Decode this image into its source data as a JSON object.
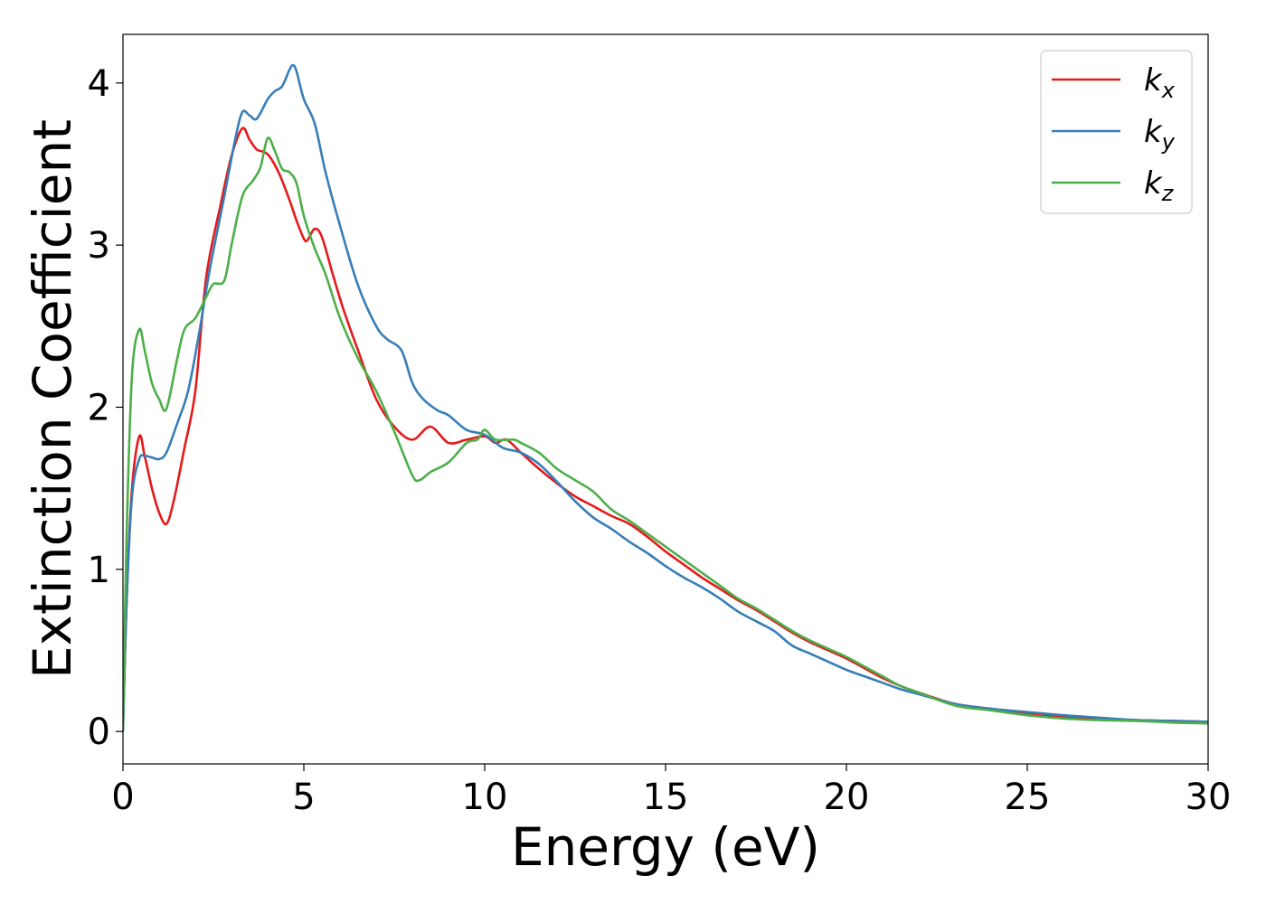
{
  "chart_data": {
    "type": "line",
    "title": "",
    "xlabel": "Energy (eV)",
    "ylabel": "Extinction Coefficient",
    "xlim": [
      0,
      30
    ],
    "ylim": [
      -0.2,
      4.3
    ],
    "xticks": [
      0,
      5,
      10,
      15,
      20,
      25,
      30
    ],
    "yticks": [
      0,
      1,
      2,
      3,
      4
    ],
    "grid": false,
    "legend_position": "top-right",
    "series": [
      {
        "base": "k",
        "sub": "x",
        "color": "#e41a1c",
        "points": [
          [
            0,
            0
          ],
          [
            0.1,
            0.8
          ],
          [
            0.25,
            1.5
          ],
          [
            0.45,
            1.82
          ],
          [
            0.6,
            1.7
          ],
          [
            0.8,
            1.5
          ],
          [
            1.0,
            1.35
          ],
          [
            1.2,
            1.28
          ],
          [
            1.4,
            1.42
          ],
          [
            1.7,
            1.75
          ],
          [
            2.0,
            2.1
          ],
          [
            2.3,
            2.8
          ],
          [
            2.7,
            3.25
          ],
          [
            3.0,
            3.55
          ],
          [
            3.3,
            3.72
          ],
          [
            3.5,
            3.65
          ],
          [
            3.7,
            3.59
          ],
          [
            4.0,
            3.56
          ],
          [
            4.3,
            3.45
          ],
          [
            4.6,
            3.28
          ],
          [
            4.8,
            3.15
          ],
          [
            5.0,
            3.04
          ],
          [
            5.1,
            3.03
          ],
          [
            5.3,
            3.1
          ],
          [
            5.5,
            3.05
          ],
          [
            5.8,
            2.82
          ],
          [
            6.1,
            2.6
          ],
          [
            6.5,
            2.35
          ],
          [
            7.0,
            2.05
          ],
          [
            7.5,
            1.88
          ],
          [
            8.0,
            1.8
          ],
          [
            8.5,
            1.88
          ],
          [
            9.0,
            1.78
          ],
          [
            9.5,
            1.8
          ],
          [
            10.0,
            1.82
          ],
          [
            10.3,
            1.78
          ],
          [
            10.6,
            1.8
          ],
          [
            11.0,
            1.72
          ],
          [
            11.5,
            1.62
          ],
          [
            12.0,
            1.53
          ],
          [
            12.5,
            1.45
          ],
          [
            13.0,
            1.39
          ],
          [
            13.5,
            1.33
          ],
          [
            14.0,
            1.28
          ],
          [
            14.5,
            1.2
          ],
          [
            15.0,
            1.11
          ],
          [
            15.5,
            1.03
          ],
          [
            16.0,
            0.95
          ],
          [
            16.5,
            0.88
          ],
          [
            17.0,
            0.81
          ],
          [
            17.5,
            0.75
          ],
          [
            18.0,
            0.68
          ],
          [
            18.5,
            0.61
          ],
          [
            19.0,
            0.55
          ],
          [
            19.5,
            0.5
          ],
          [
            20.0,
            0.45
          ],
          [
            20.5,
            0.39
          ],
          [
            21.0,
            0.33
          ],
          [
            21.5,
            0.28
          ],
          [
            22.0,
            0.24
          ],
          [
            23.0,
            0.17
          ],
          [
            24.0,
            0.14
          ],
          [
            25.0,
            0.11
          ],
          [
            26.0,
            0.09
          ],
          [
            27.0,
            0.08
          ],
          [
            28.0,
            0.07
          ],
          [
            29.0,
            0.065
          ],
          [
            30.0,
            0.06
          ]
        ]
      },
      {
        "base": "k",
        "sub": "y",
        "color": "#377eb8",
        "points": [
          [
            0,
            0
          ],
          [
            0.1,
            0.8
          ],
          [
            0.25,
            1.45
          ],
          [
            0.45,
            1.68
          ],
          [
            0.6,
            1.7
          ],
          [
            0.8,
            1.69
          ],
          [
            1.0,
            1.68
          ],
          [
            1.2,
            1.72
          ],
          [
            1.5,
            1.9
          ],
          [
            1.8,
            2.1
          ],
          [
            2.1,
            2.45
          ],
          [
            2.4,
            2.85
          ],
          [
            2.8,
            3.3
          ],
          [
            3.1,
            3.65
          ],
          [
            3.3,
            3.82
          ],
          [
            3.5,
            3.8
          ],
          [
            3.7,
            3.78
          ],
          [
            4.0,
            3.9
          ],
          [
            4.2,
            3.95
          ],
          [
            4.4,
            3.98
          ],
          [
            4.6,
            4.08
          ],
          [
            4.7,
            4.11
          ],
          [
            4.8,
            4.07
          ],
          [
            5.0,
            3.9
          ],
          [
            5.3,
            3.75
          ],
          [
            5.6,
            3.45
          ],
          [
            6.0,
            3.12
          ],
          [
            6.5,
            2.75
          ],
          [
            7.0,
            2.5
          ],
          [
            7.3,
            2.42
          ],
          [
            7.7,
            2.35
          ],
          [
            8.0,
            2.15
          ],
          [
            8.3,
            2.05
          ],
          [
            8.7,
            1.98
          ],
          [
            9.0,
            1.95
          ],
          [
            9.5,
            1.86
          ],
          [
            10.0,
            1.83
          ],
          [
            10.5,
            1.75
          ],
          [
            11.0,
            1.72
          ],
          [
            11.5,
            1.65
          ],
          [
            12.0,
            1.54
          ],
          [
            12.5,
            1.42
          ],
          [
            13.0,
            1.32
          ],
          [
            13.5,
            1.25
          ],
          [
            14.0,
            1.17
          ],
          [
            14.5,
            1.1
          ],
          [
            15.0,
            1.02
          ],
          [
            15.5,
            0.95
          ],
          [
            16.0,
            0.89
          ],
          [
            16.5,
            0.82
          ],
          [
            17.0,
            0.74
          ],
          [
            17.5,
            0.68
          ],
          [
            18.0,
            0.62
          ],
          [
            18.5,
            0.53
          ],
          [
            19.0,
            0.48
          ],
          [
            19.5,
            0.43
          ],
          [
            20.0,
            0.38
          ],
          [
            20.5,
            0.34
          ],
          [
            21.0,
            0.3
          ],
          [
            21.5,
            0.26
          ],
          [
            22.0,
            0.23
          ],
          [
            23.0,
            0.17
          ],
          [
            24.0,
            0.14
          ],
          [
            25.0,
            0.12
          ],
          [
            26.0,
            0.1
          ],
          [
            27.0,
            0.085
          ],
          [
            28.0,
            0.07
          ],
          [
            29.0,
            0.065
          ],
          [
            30.0,
            0.06
          ]
        ]
      },
      {
        "base": "k",
        "sub": "z",
        "color": "#4daf4a",
        "points": [
          [
            0,
            0
          ],
          [
            0.1,
            1.2
          ],
          [
            0.25,
            2.2
          ],
          [
            0.45,
            2.48
          ],
          [
            0.6,
            2.35
          ],
          [
            0.8,
            2.15
          ],
          [
            1.0,
            2.05
          ],
          [
            1.2,
            1.99
          ],
          [
            1.5,
            2.3
          ],
          [
            1.7,
            2.48
          ],
          [
            2.0,
            2.55
          ],
          [
            2.3,
            2.68
          ],
          [
            2.5,
            2.76
          ],
          [
            2.8,
            2.78
          ],
          [
            3.0,
            3.0
          ],
          [
            3.3,
            3.3
          ],
          [
            3.6,
            3.4
          ],
          [
            3.8,
            3.48
          ],
          [
            4.0,
            3.66
          ],
          [
            4.2,
            3.58
          ],
          [
            4.4,
            3.47
          ],
          [
            4.6,
            3.45
          ],
          [
            4.8,
            3.38
          ],
          [
            5.0,
            3.18
          ],
          [
            5.3,
            2.98
          ],
          [
            5.6,
            2.82
          ],
          [
            6.0,
            2.55
          ],
          [
            6.5,
            2.3
          ],
          [
            7.0,
            2.1
          ],
          [
            7.5,
            1.85
          ],
          [
            8.0,
            1.58
          ],
          [
            8.2,
            1.55
          ],
          [
            8.5,
            1.6
          ],
          [
            9.0,
            1.66
          ],
          [
            9.5,
            1.78
          ],
          [
            9.8,
            1.8
          ],
          [
            10.0,
            1.86
          ],
          [
            10.3,
            1.8
          ],
          [
            10.8,
            1.8
          ],
          [
            11.0,
            1.78
          ],
          [
            11.5,
            1.72
          ],
          [
            12.0,
            1.62
          ],
          [
            12.5,
            1.55
          ],
          [
            13.0,
            1.48
          ],
          [
            13.5,
            1.37
          ],
          [
            14.0,
            1.3
          ],
          [
            14.5,
            1.22
          ],
          [
            15.0,
            1.14
          ],
          [
            15.5,
            1.06
          ],
          [
            16.0,
            0.98
          ],
          [
            16.5,
            0.9
          ],
          [
            17.0,
            0.82
          ],
          [
            17.5,
            0.76
          ],
          [
            18.0,
            0.69
          ],
          [
            18.5,
            0.62
          ],
          [
            19.0,
            0.56
          ],
          [
            19.5,
            0.51
          ],
          [
            20.0,
            0.46
          ],
          [
            20.5,
            0.4
          ],
          [
            21.0,
            0.34
          ],
          [
            21.5,
            0.28
          ],
          [
            22.0,
            0.24
          ],
          [
            23.0,
            0.16
          ],
          [
            24.0,
            0.13
          ],
          [
            25.0,
            0.1
          ],
          [
            26.0,
            0.08
          ],
          [
            27.0,
            0.07
          ],
          [
            28.0,
            0.065
          ],
          [
            29.0,
            0.055
          ],
          [
            30.0,
            0.05
          ]
        ]
      }
    ]
  }
}
